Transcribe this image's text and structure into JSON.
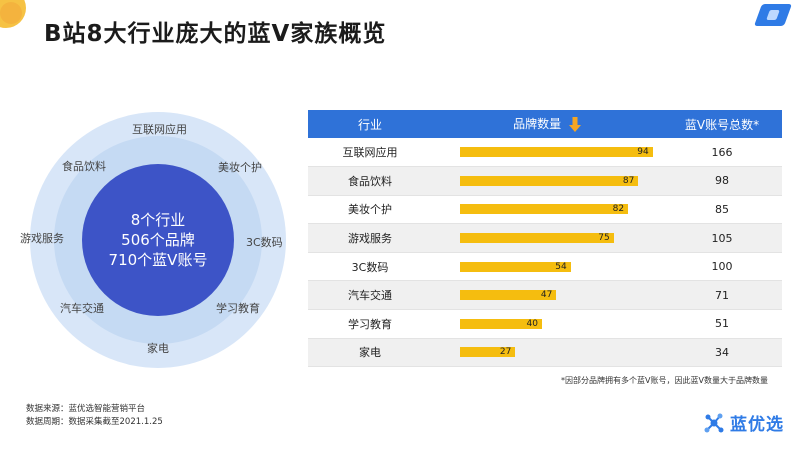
{
  "title": "B站8大行业庞大的蓝V家族概览",
  "center": {
    "line1": "8个行业",
    "line2": "506个品牌",
    "line3": "710个蓝V账号"
  },
  "ring_labels": [
    "互联网应用",
    "美妆个护",
    "3C数码",
    "学习教育",
    "家电",
    "汽车交通",
    "游戏服务",
    "食品饮料"
  ],
  "colors": {
    "header_bg": "#2f72d8",
    "bar": "#f5bd0f",
    "center_circle": "#3d54c7",
    "outer_ring": "#d8e6f8",
    "inner_ring": "#c5daf3",
    "arrow": "#f5a623",
    "brand": "#2f7be6"
  },
  "chart_data": {
    "type": "table",
    "headers": [
      "行业",
      "品牌数量",
      "蓝V账号总数*"
    ],
    "rows": [
      {
        "industry": "互联网应用",
        "brands": 94,
        "accounts": 166
      },
      {
        "industry": "食品饮料",
        "brands": 87,
        "accounts": 98
      },
      {
        "industry": "美妆个护",
        "brands": 82,
        "accounts": 85
      },
      {
        "industry": "游戏服务",
        "brands": 75,
        "accounts": 105
      },
      {
        "industry": "3C数码",
        "brands": 54,
        "accounts": 100
      },
      {
        "industry": "汽车交通",
        "brands": 47,
        "accounts": 71
      },
      {
        "industry": "学习教育",
        "brands": 40,
        "accounts": 51
      },
      {
        "industry": "家电",
        "brands": 27,
        "accounts": 34
      }
    ],
    "bar_max": 100,
    "sort_icon": "arrow-down-icon"
  },
  "footnote": "*因部分品牌拥有多个蓝V账号，因此蓝V数量大于品牌数量",
  "source": {
    "line1": "数据来源：蓝优选智能营销平台",
    "line2": "数据周期：数据采集截至2021.1.25"
  },
  "logo": {
    "text": "蓝优选",
    "icon": "molecule-icon"
  }
}
